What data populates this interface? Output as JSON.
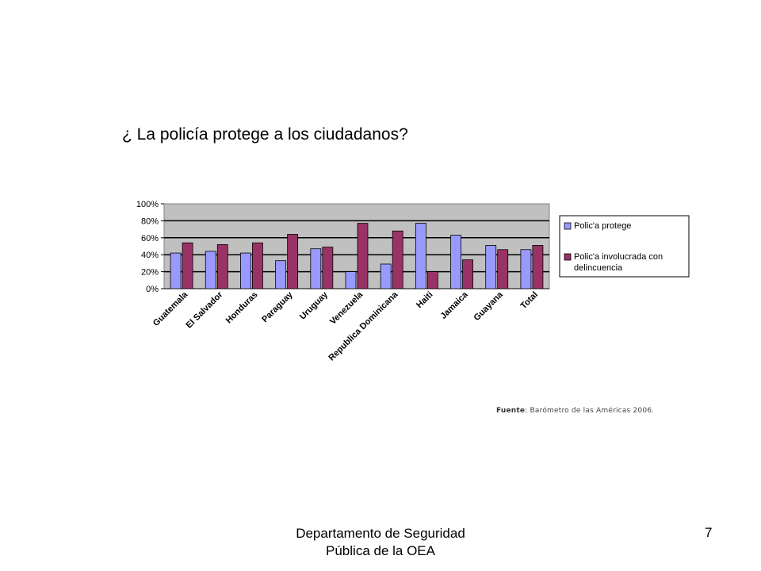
{
  "slide": {
    "title": "¿ La policía protege a los ciudadanos?",
    "source_label": "Fuente",
    "source_text": ": Barómetro de las Américas 2006.",
    "footer_line1": "Departamento de Seguridad",
    "footer_line2": "Pública de la OEA",
    "page_number": "7"
  },
  "chart_data": {
    "type": "bar",
    "categories": [
      "Guatemala",
      "El Salvador",
      "Honduras",
      "Paraguay",
      "Uruguay",
      "Venezuela",
      "Republica Dominicana",
      "Haiti",
      "Jamaica",
      "Guayana",
      "Total"
    ],
    "series": [
      {
        "name": "Polic'a protege",
        "color": "#9999ff",
        "values": [
          42,
          44,
          42,
          33,
          47,
          20,
          29,
          77,
          63,
          51,
          46
        ]
      },
      {
        "name": "Polic'a involucrada con delincuencia",
        "color": "#993366",
        "values": [
          54,
          52,
          54,
          64,
          49,
          77,
          68,
          20,
          34,
          46,
          51
        ]
      }
    ],
    "yticks": [
      "100%",
      "80%",
      "60%",
      "40%",
      "20%",
      "0%"
    ],
    "ylim": [
      0,
      100
    ],
    "grid": true,
    "plot_background": "#c0c0c0",
    "legend_position": "right"
  }
}
